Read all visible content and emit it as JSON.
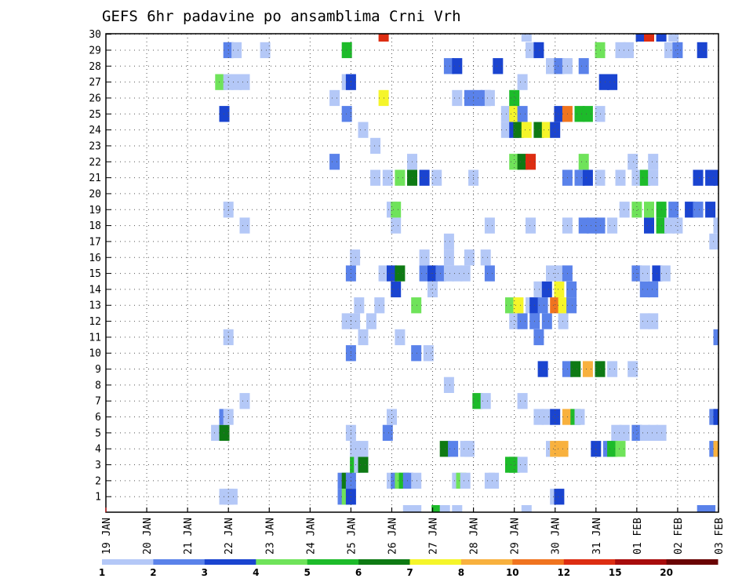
{
  "chart_data": {
    "type": "heatmap",
    "title": "GEFS 6hr padavine po ansamblima Crni Vrh",
    "x_tick_labels": [
      "19 JAN",
      "20 JAN",
      "21 JAN",
      "22 JAN",
      "23 JAN",
      "24 JAN",
      "25 JAN",
      "26 JAN",
      "27 JAN",
      "28 JAN",
      "29 JAN",
      "30 JAN",
      "31 JAN",
      "01 FEB",
      "02 FEB",
      "03 FEB"
    ],
    "y_tick_labels": [
      "1",
      "2",
      "3",
      "4",
      "5",
      "6",
      "7",
      "8",
      "9",
      "10",
      "11",
      "12",
      "13",
      "14",
      "15",
      "16",
      "17",
      "18",
      "19",
      "20",
      "21",
      "22",
      "23",
      "24",
      "25",
      "26",
      "27",
      "28",
      "29",
      "30"
    ],
    "xlim_days": [
      0,
      15
    ],
    "ylim_members": [
      0,
      30
    ],
    "grid": "dotted",
    "colorbar": {
      "labels": [
        "1",
        "2",
        "3",
        "4",
        "5",
        "6",
        "7",
        "8",
        "10",
        "12",
        "15",
        "20"
      ],
      "colors": [
        "#b4c8f7",
        "#5a82ea",
        "#1a44d0",
        "#6fe35a",
        "#1dbb2a",
        "#0e7a14",
        "#f5f52a",
        "#f8b13e",
        "#f0741f",
        "#dd2d12",
        "#a80c0c",
        "#6a0404"
      ]
    },
    "cells": [
      [
        2.9,
        1,
        1
      ],
      [
        3.0,
        1,
        1
      ],
      [
        3.1,
        1,
        1
      ],
      [
        5.8,
        1,
        2
      ],
      [
        5.9,
        1,
        4
      ],
      [
        6.0,
        1,
        3
      ],
      [
        11.0,
        1,
        1
      ],
      [
        11.1,
        1,
        3
      ],
      [
        5.8,
        2,
        2
      ],
      [
        5.9,
        2,
        6
      ],
      [
        6.0,
        2,
        2
      ],
      [
        7.0,
        2,
        1
      ],
      [
        7.1,
        2,
        2
      ],
      [
        7.2,
        2,
        4
      ],
      [
        7.3,
        2,
        5
      ],
      [
        7.4,
        2,
        2
      ],
      [
        7.6,
        2,
        1
      ],
      [
        8.6,
        2,
        1
      ],
      [
        8.7,
        2,
        4
      ],
      [
        8.8,
        2,
        1
      ],
      [
        9.4,
        2,
        1
      ],
      [
        9.5,
        2,
        1
      ],
      [
        6.1,
        3,
        5
      ],
      [
        6.2,
        3,
        1
      ],
      [
        6.3,
        3,
        6
      ],
      [
        9.9,
        3,
        5
      ],
      [
        10.0,
        3,
        5
      ],
      [
        10.2,
        3,
        1
      ],
      [
        6.1,
        4,
        1
      ],
      [
        6.3,
        4,
        1
      ],
      [
        8.3,
        4,
        6
      ],
      [
        8.5,
        4,
        2
      ],
      [
        8.8,
        4,
        1
      ],
      [
        8.9,
        4,
        1
      ],
      [
        10.9,
        4,
        1
      ],
      [
        11.0,
        4,
        8
      ],
      [
        11.2,
        4,
        8
      ],
      [
        12.0,
        4,
        3
      ],
      [
        12.3,
        4,
        2
      ],
      [
        12.4,
        4,
        5
      ],
      [
        12.6,
        4,
        4
      ],
      [
        14.9,
        4,
        2
      ],
      [
        15.0,
        4,
        8
      ],
      [
        2.7,
        5,
        1
      ],
      [
        2.9,
        5,
        6
      ],
      [
        6.0,
        5,
        1
      ],
      [
        6.9,
        5,
        2
      ],
      [
        12.5,
        5,
        1
      ],
      [
        12.7,
        5,
        1
      ],
      [
        13.0,
        5,
        2
      ],
      [
        13.2,
        5,
        1
      ],
      [
        13.4,
        5,
        1
      ],
      [
        13.6,
        5,
        1
      ],
      [
        2.9,
        6,
        2
      ],
      [
        3.0,
        6,
        1
      ],
      [
        7.0,
        6,
        1
      ],
      [
        10.6,
        6,
        1
      ],
      [
        10.8,
        6,
        1
      ],
      [
        11.0,
        6,
        3
      ],
      [
        11.3,
        6,
        8
      ],
      [
        11.5,
        6,
        5
      ],
      [
        11.6,
        6,
        1
      ],
      [
        14.9,
        6,
        2
      ],
      [
        15.0,
        6,
        3
      ],
      [
        3.4,
        7,
        1
      ],
      [
        9.1,
        7,
        5
      ],
      [
        9.3,
        7,
        1
      ],
      [
        10.2,
        7,
        1
      ],
      [
        8.4,
        8,
        1
      ],
      [
        10.7,
        9,
        3
      ],
      [
        11.3,
        9,
        2
      ],
      [
        11.5,
        9,
        6
      ],
      [
        11.8,
        9,
        8
      ],
      [
        12.1,
        9,
        6
      ],
      [
        12.4,
        9,
        1
      ],
      [
        12.9,
        9,
        1
      ],
      [
        6.0,
        10,
        2
      ],
      [
        7.6,
        10,
        2
      ],
      [
        7.9,
        10,
        1
      ],
      [
        3.0,
        11,
        1
      ],
      [
        6.3,
        11,
        1
      ],
      [
        7.2,
        11,
        1
      ],
      [
        10.6,
        11,
        2
      ],
      [
        15.0,
        11,
        2
      ],
      [
        5.9,
        12,
        1
      ],
      [
        6.1,
        12,
        1
      ],
      [
        6.5,
        12,
        1
      ],
      [
        10.0,
        12,
        1
      ],
      [
        10.2,
        12,
        2
      ],
      [
        10.5,
        12,
        2
      ],
      [
        10.8,
        12,
        2
      ],
      [
        11.2,
        12,
        1
      ],
      [
        13.2,
        12,
        1
      ],
      [
        13.4,
        12,
        1
      ],
      [
        6.2,
        13,
        1
      ],
      [
        6.7,
        13,
        1
      ],
      [
        7.6,
        13,
        4
      ],
      [
        9.9,
        13,
        4
      ],
      [
        10.1,
        13,
        7
      ],
      [
        10.4,
        13,
        1
      ],
      [
        10.5,
        13,
        3
      ],
      [
        10.7,
        13,
        2
      ],
      [
        11.0,
        13,
        9
      ],
      [
        11.2,
        13,
        7
      ],
      [
        11.4,
        13,
        2
      ],
      [
        7.1,
        14,
        3
      ],
      [
        8.0,
        14,
        1
      ],
      [
        10.6,
        14,
        1
      ],
      [
        10.8,
        14,
        3
      ],
      [
        11.1,
        14,
        7
      ],
      [
        11.4,
        14,
        2
      ],
      [
        13.2,
        14,
        2
      ],
      [
        13.4,
        14,
        2
      ],
      [
        6.0,
        15,
        2
      ],
      [
        6.8,
        15,
        1
      ],
      [
        7.0,
        15,
        3
      ],
      [
        7.2,
        15,
        6
      ],
      [
        7.8,
        15,
        2
      ],
      [
        8.0,
        15,
        3
      ],
      [
        8.2,
        15,
        2
      ],
      [
        8.4,
        15,
        1
      ],
      [
        8.6,
        15,
        1
      ],
      [
        8.8,
        15,
        1
      ],
      [
        9.4,
        15,
        2
      ],
      [
        10.9,
        15,
        1
      ],
      [
        11.1,
        15,
        1
      ],
      [
        11.3,
        15,
        2
      ],
      [
        13.0,
        15,
        2
      ],
      [
        13.2,
        15,
        1
      ],
      [
        13.5,
        15,
        3
      ],
      [
        13.7,
        15,
        1
      ],
      [
        6.1,
        16,
        1
      ],
      [
        7.8,
        16,
        1
      ],
      [
        8.4,
        16,
        1
      ],
      [
        8.9,
        16,
        1
      ],
      [
        9.3,
        16,
        1
      ],
      [
        8.4,
        17,
        1
      ],
      [
        14.9,
        17,
        1
      ],
      [
        3.4,
        18,
        1
      ],
      [
        7.1,
        18,
        1
      ],
      [
        9.4,
        18,
        1
      ],
      [
        10.4,
        18,
        1
      ],
      [
        11.3,
        18,
        1
      ],
      [
        11.7,
        18,
        2
      ],
      [
        11.9,
        18,
        2
      ],
      [
        12.1,
        18,
        2
      ],
      [
        12.4,
        18,
        1
      ],
      [
        13.3,
        18,
        3
      ],
      [
        13.6,
        18,
        5
      ],
      [
        13.8,
        18,
        1
      ],
      [
        14.0,
        18,
        1
      ],
      [
        15.0,
        18,
        1
      ],
      [
        3.0,
        19,
        1
      ],
      [
        7.0,
        19,
        1
      ],
      [
        7.1,
        19,
        4
      ],
      [
        12.7,
        19,
        1
      ],
      [
        13.0,
        19,
        4
      ],
      [
        13.3,
        19,
        4
      ],
      [
        13.6,
        19,
        5
      ],
      [
        13.9,
        19,
        2
      ],
      [
        14.3,
        19,
        3
      ],
      [
        14.5,
        19,
        2
      ],
      [
        14.8,
        19,
        3
      ],
      [
        6.6,
        21,
        1
      ],
      [
        6.9,
        21,
        1
      ],
      [
        7.2,
        21,
        4
      ],
      [
        7.5,
        21,
        6
      ],
      [
        7.8,
        21,
        3
      ],
      [
        8.1,
        21,
        1
      ],
      [
        9.0,
        21,
        1
      ],
      [
        11.3,
        21,
        2
      ],
      [
        11.6,
        21,
        2
      ],
      [
        11.8,
        21,
        3
      ],
      [
        12.1,
        21,
        1
      ],
      [
        12.6,
        21,
        1
      ],
      [
        13.0,
        21,
        1
      ],
      [
        13.2,
        21,
        5
      ],
      [
        13.4,
        21,
        1
      ],
      [
        14.5,
        21,
        3
      ],
      [
        14.8,
        21,
        3
      ],
      [
        15.0,
        21,
        3
      ],
      [
        5.6,
        22,
        2
      ],
      [
        7.5,
        22,
        1
      ],
      [
        10.0,
        22,
        4
      ],
      [
        10.2,
        22,
        6
      ],
      [
        10.4,
        22,
        10
      ],
      [
        11.7,
        22,
        4
      ],
      [
        12.9,
        22,
        1
      ],
      [
        13.4,
        22,
        1
      ],
      [
        6.6,
        23,
        1
      ],
      [
        6.3,
        24,
        1
      ],
      [
        9.8,
        24,
        1
      ],
      [
        10.0,
        24,
        3
      ],
      [
        10.1,
        24,
        6
      ],
      [
        10.3,
        24,
        7
      ],
      [
        10.6,
        24,
        6
      ],
      [
        10.8,
        24,
        7
      ],
      [
        11.0,
        24,
        3
      ],
      [
        2.9,
        25,
        3
      ],
      [
        5.9,
        25,
        2
      ],
      [
        9.8,
        25,
        1
      ],
      [
        10.0,
        25,
        7
      ],
      [
        10.2,
        25,
        2
      ],
      [
        11.1,
        25,
        3
      ],
      [
        11.3,
        25,
        9
      ],
      [
        11.6,
        25,
        5
      ],
      [
        11.8,
        25,
        5
      ],
      [
        12.1,
        25,
        1
      ],
      [
        5.6,
        26,
        1
      ],
      [
        6.8,
        26,
        7
      ],
      [
        8.6,
        26,
        1
      ],
      [
        8.9,
        26,
        2
      ],
      [
        9.1,
        26,
        2
      ],
      [
        9.3,
        26,
        2
      ],
      [
        9.4,
        26,
        1
      ],
      [
        10.0,
        26,
        5
      ],
      [
        2.8,
        27,
        4
      ],
      [
        3.0,
        27,
        1
      ],
      [
        3.2,
        27,
        1
      ],
      [
        3.4,
        27,
        1
      ],
      [
        5.9,
        27,
        1
      ],
      [
        6.0,
        27,
        3
      ],
      [
        10.2,
        27,
        1
      ],
      [
        12.2,
        27,
        3
      ],
      [
        12.4,
        27,
        3
      ],
      [
        8.4,
        28,
        2
      ],
      [
        8.6,
        28,
        3
      ],
      [
        9.6,
        28,
        3
      ],
      [
        10.9,
        28,
        1
      ],
      [
        11.1,
        28,
        2
      ],
      [
        11.3,
        28,
        1
      ],
      [
        11.7,
        28,
        2
      ],
      [
        3.0,
        29,
        2
      ],
      [
        3.2,
        29,
        1
      ],
      [
        3.9,
        29,
        1
      ],
      [
        5.9,
        29,
        5
      ],
      [
        10.4,
        29,
        1
      ],
      [
        10.6,
        29,
        3
      ],
      [
        12.1,
        29,
        4
      ],
      [
        12.6,
        29,
        1
      ],
      [
        12.8,
        29,
        1
      ],
      [
        13.8,
        29,
        1
      ],
      [
        14.0,
        29,
        2
      ],
      [
        14.6,
        29,
        3
      ],
      [
        6.8,
        30,
        10
      ],
      [
        10.3,
        30,
        1
      ],
      [
        13.1,
        30,
        3
      ],
      [
        13.3,
        30,
        10
      ],
      [
        13.6,
        30,
        3
      ],
      [
        13.9,
        30,
        1
      ],
      [
        7.4,
        0,
        1
      ],
      [
        7.6,
        0,
        1
      ],
      [
        8.1,
        0,
        5
      ],
      [
        8.3,
        0,
        1
      ],
      [
        8.6,
        0,
        1
      ],
      [
        10.3,
        0,
        1
      ],
      [
        14.6,
        0,
        2
      ],
      [
        14.8,
        0,
        2
      ]
    ]
  }
}
